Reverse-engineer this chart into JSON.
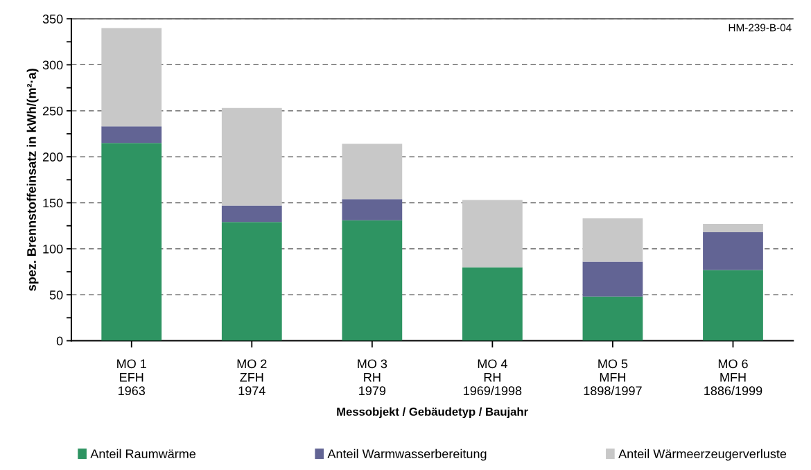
{
  "chart_data": {
    "type": "bar",
    "stacked": true,
    "categories": [
      "MO 1\nEFH\n1963",
      "MO 2\nZFH\n1974",
      "MO 3\nRH\n1979",
      "MO 4\nRH\n1969/1998",
      "MO 5\nMFH\n1898/1997",
      "MO 6\nMFH\n1886/1999"
    ],
    "series": [
      {
        "name": "Anteil Raumwärme",
        "color": "#2e9462",
        "values": [
          215,
          129,
          131,
          80,
          48,
          77
        ]
      },
      {
        "name": "Anteil Warmwasserbereitung",
        "color": "#626494",
        "values": [
          18,
          18,
          23,
          0,
          38,
          41
        ]
      },
      {
        "name": "Anteil Wärmeerzeugerverluste",
        "color": "#c8c8c8",
        "values": [
          107,
          106,
          60,
          73,
          47,
          9
        ]
      }
    ],
    "xlabel": "Messobjekt / Gebäudetyp / Baujahr",
    "ylabel": "spez. Brennstoffeinsatz in kWh/(m²·a)",
    "ylim": [
      0,
      350
    ],
    "yticks": [
      0,
      {
        "value": 25,
        "label": null
      },
      50,
      {
        "value": 75,
        "label": null
      },
      100,
      {
        "value": 125,
        "label": null
      },
      150,
      {
        "value": 175,
        "label": null
      },
      200,
      {
        "value": 225,
        "label": null
      },
      250,
      {
        "value": 275,
        "label": null
      },
      300,
      {
        "value": 325,
        "label": null
      },
      350
    ],
    "grid": "y",
    "legend": "bottom",
    "annotations": [
      "HM-239-B-04"
    ]
  }
}
